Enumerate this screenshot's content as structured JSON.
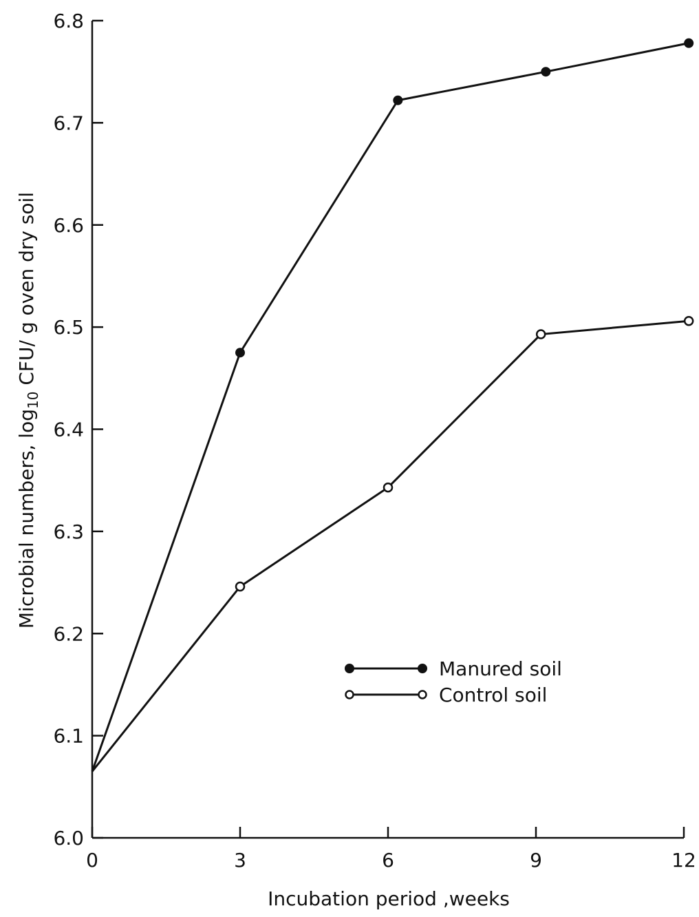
{
  "chart_data": {
    "type": "line",
    "title": "",
    "xlabel": "Incubation period ,weeks",
    "ylabel_main": "Microbial numbers, log",
    "ylabel_sub": "10",
    "ylabel_tail": " CFU/ g oven dry soil",
    "x": [
      0,
      3,
      6,
      9,
      12
    ],
    "x_ticks": [
      "0",
      "3",
      "6",
      "9",
      "12"
    ],
    "y_ticks": [
      "6.0",
      "6.1",
      "6.2",
      "6.3",
      "6.4",
      "6.5",
      "6.6",
      "6.7",
      "6.8"
    ],
    "xlim": [
      0,
      12
    ],
    "ylim": [
      6.0,
      6.8
    ],
    "grid": false,
    "legend_position": "center-right",
    "series": [
      {
        "name": "Manured soil",
        "marker": "filled-circle",
        "x": [
          0,
          3,
          6.2,
          9.2,
          12.1
        ],
        "values": [
          6.065,
          6.475,
          6.722,
          6.75,
          6.778
        ]
      },
      {
        "name": "Control soil",
        "marker": "open-circle",
        "x": [
          0,
          3,
          6,
          9.1,
          12.1
        ],
        "values": [
          6.065,
          6.246,
          6.343,
          6.493,
          6.506
        ]
      }
    ]
  }
}
